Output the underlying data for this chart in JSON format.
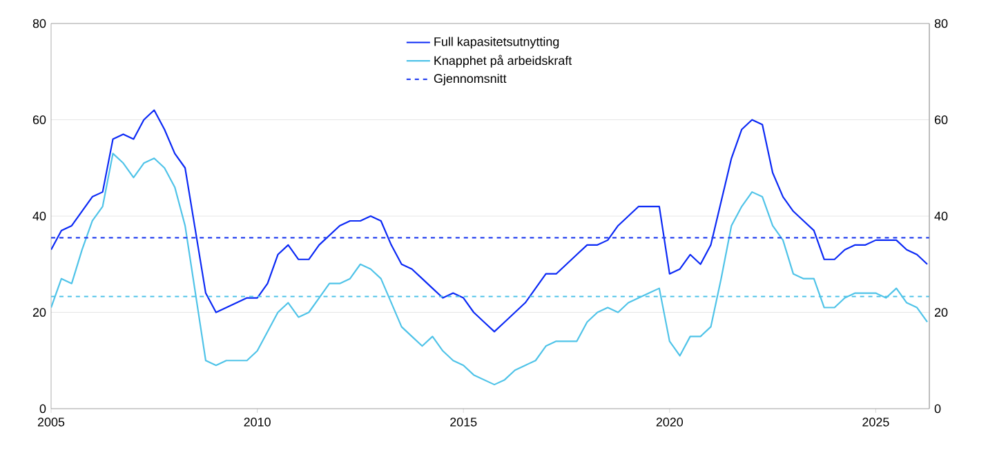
{
  "chart_data": {
    "type": "line",
    "x": [
      2005.0,
      2005.25,
      2005.5,
      2005.75,
      2006.0,
      2006.25,
      2006.5,
      2006.75,
      2007.0,
      2007.25,
      2007.5,
      2007.75,
      2008.0,
      2008.25,
      2008.5,
      2008.75,
      2009.0,
      2009.25,
      2009.5,
      2009.75,
      2010.0,
      2010.25,
      2010.5,
      2010.75,
      2011.0,
      2011.25,
      2011.5,
      2011.75,
      2012.0,
      2012.25,
      2012.5,
      2012.75,
      2013.0,
      2013.25,
      2013.5,
      2013.75,
      2014.0,
      2014.25,
      2014.5,
      2014.75,
      2015.0,
      2015.25,
      2015.5,
      2015.75,
      2016.0,
      2016.25,
      2016.5,
      2016.75,
      2017.0,
      2017.25,
      2017.5,
      2017.75,
      2018.0,
      2018.25,
      2018.5,
      2018.75,
      2019.0,
      2019.25,
      2019.5,
      2019.75,
      2020.0,
      2020.25,
      2020.5,
      2020.75,
      2021.0,
      2021.25,
      2021.5,
      2021.75,
      2022.0,
      2022.25,
      2022.5,
      2022.75,
      2023.0,
      2023.25,
      2023.5,
      2023.75,
      2024.0,
      2024.25,
      2024.5,
      2024.75,
      2025.0,
      2025.25,
      2025.5,
      2025.75,
      2026.0,
      2026.25
    ],
    "series": [
      {
        "name": "Full kapasitetsutnytting",
        "color": "#0a28f5",
        "values": [
          33,
          37,
          38,
          41,
          44,
          45,
          56,
          57,
          56,
          60,
          62,
          58,
          53,
          50,
          37,
          24,
          20,
          21,
          22,
          23,
          23,
          26,
          32,
          34,
          31,
          31,
          34,
          36,
          38,
          39,
          39,
          40,
          39,
          34,
          30,
          29,
          27,
          25,
          23,
          24,
          23,
          20,
          18,
          16,
          18,
          20,
          22,
          25,
          28,
          28,
          30,
          32,
          34,
          34,
          35,
          38,
          40,
          42,
          42,
          42,
          28,
          29,
          32,
          30,
          34,
          43,
          52,
          58,
          60,
          59,
          49,
          44,
          41,
          39,
          37,
          31,
          31,
          33,
          34,
          34,
          35,
          35,
          35,
          33,
          32,
          30
        ]
      },
      {
        "name": "Knapphet på arbeidskraft",
        "color": "#4fc3e8",
        "values": [
          21,
          27,
          26,
          33,
          39,
          42,
          53,
          51,
          48,
          51,
          52,
          50,
          46,
          38,
          24,
          10,
          9,
          10,
          10,
          10,
          12,
          16,
          20,
          22,
          19,
          20,
          23,
          26,
          26,
          27,
          30,
          29,
          27,
          22,
          17,
          15,
          13,
          15,
          12,
          10,
          9,
          7,
          6,
          5,
          6,
          8,
          9,
          10,
          13,
          14,
          14,
          14,
          18,
          20,
          21,
          20,
          22,
          23,
          24,
          25,
          14,
          11,
          15,
          15,
          17,
          27,
          38,
          42,
          45,
          44,
          38,
          35,
          28,
          27,
          27,
          21,
          21,
          23,
          24,
          24,
          24,
          23,
          25,
          22,
          21,
          18
        ]
      }
    ],
    "ref_lines": [
      {
        "axis": "y",
        "value": 35.5,
        "label": "Gjennomsnitt",
        "color": "#2a45f0",
        "line_style": "dashed"
      },
      {
        "axis": "y",
        "value": 23.3,
        "color": "#4fc3e8",
        "line_style": "dashed"
      }
    ],
    "xlim": [
      2005,
      2026.3
    ],
    "xticks": [
      2005,
      2010,
      2015,
      2020,
      2025
    ],
    "ylim": [
      0,
      80
    ],
    "yticks": [
      0,
      20,
      40,
      60,
      80
    ],
    "y2lim": [
      0,
      80
    ],
    "y2ticks": [
      0,
      20,
      40,
      60,
      80
    ],
    "grid": "y",
    "legend": "top",
    "line_style": "solid",
    "marker": "none"
  }
}
